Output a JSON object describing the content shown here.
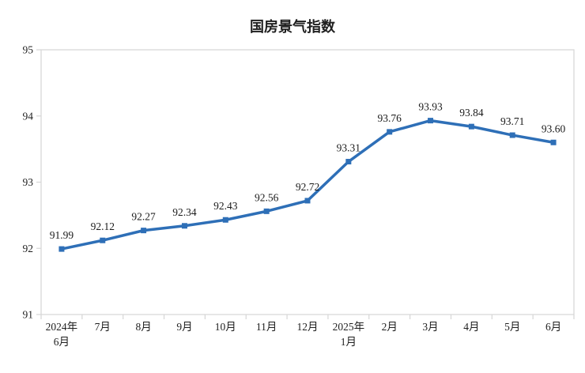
{
  "chart_data": {
    "type": "line",
    "title": "国房景气指数",
    "categories": [
      "2024年\n6月",
      "7月",
      "8月",
      "9月",
      "10月",
      "11月",
      "12月",
      "2025年\n1月",
      "2月",
      "3月",
      "4月",
      "5月",
      "6月"
    ],
    "values": [
      91.99,
      92.12,
      92.27,
      92.34,
      92.43,
      92.56,
      92.72,
      93.31,
      93.76,
      93.93,
      93.84,
      93.71,
      93.6
    ],
    "ylim": [
      91,
      95
    ],
    "y_ticks": [
      91,
      92,
      93,
      94,
      95
    ],
    "grid": false,
    "legend": "none",
    "marker": "square",
    "line_color": "#2e6fb7",
    "axis_color": "#d6d6d6",
    "text_color": "#1f1f1f",
    "background_color": "#ffffff"
  }
}
